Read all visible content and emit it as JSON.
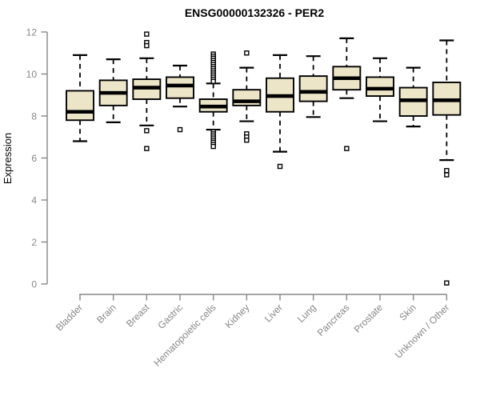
{
  "title": "ENSG00000132326 - PER2",
  "colors": {
    "background": "#ffffff",
    "box_fill": "#ece5c8",
    "box_stroke": "#000000",
    "median": "#000000",
    "whisker": "#000000",
    "outlier_stroke": "#000000",
    "outlier_fill": "#ffffff",
    "axis": "#878787",
    "label_text": "#878787",
    "title_text": "#000000"
  },
  "chart_data": {
    "type": "boxplot",
    "title": "ENSG00000132326 - PER2",
    "xlabel": "",
    "ylabel": "Expression",
    "ylim": [
      0,
      12
    ],
    "yticks": [
      0,
      2,
      4,
      6,
      8,
      10,
      12
    ],
    "grid": false,
    "legend": null,
    "whisker_style": "dashed",
    "outlier_marker": "open-square",
    "categories": [
      "Bladder",
      "Brain",
      "Breast",
      "Gastric",
      "Hematopoietic cells",
      "Kidney",
      "Liver",
      "Lung",
      "Pancreas",
      "Prostate",
      "Skin",
      "Unknown / Other"
    ],
    "series": [
      {
        "category": "Bladder",
        "whisker_low": 6.8,
        "q1": 7.8,
        "median": 8.2,
        "q3": 9.2,
        "whisker_high": 10.9,
        "outliers": []
      },
      {
        "category": "Brain",
        "whisker_low": 7.7,
        "q1": 8.5,
        "median": 9.1,
        "q3": 9.7,
        "whisker_high": 10.7,
        "outliers": []
      },
      {
        "category": "Breast",
        "whisker_low": 7.55,
        "q1": 8.8,
        "median": 9.35,
        "q3": 9.75,
        "whisker_high": 10.75,
        "outliers": [
          11.9,
          11.5,
          11.35,
          7.3,
          6.45
        ]
      },
      {
        "category": "Gastric",
        "whisker_low": 8.45,
        "q1": 8.85,
        "median": 9.45,
        "q3": 9.85,
        "whisker_high": 10.4,
        "outliers": [
          7.35
        ]
      },
      {
        "category": "Hematopoietic cells",
        "whisker_low": 7.35,
        "q1": 8.2,
        "median": 8.45,
        "q3": 8.8,
        "whisker_high": 9.55,
        "outliers": [
          10.95,
          10.85,
          10.75,
          10.65,
          10.55,
          10.45,
          10.35,
          10.25,
          10.15,
          10.05,
          9.95,
          9.85,
          9.75,
          9.65,
          7.25,
          7.15,
          7.05,
          6.95,
          6.85,
          6.75,
          6.65,
          6.55
        ]
      },
      {
        "category": "Kidney",
        "whisker_low": 7.75,
        "q1": 8.5,
        "median": 8.7,
        "q3": 9.25,
        "whisker_high": 10.3,
        "outliers": [
          11.0,
          7.15,
          7.0,
          6.85
        ]
      },
      {
        "category": "Liver",
        "whisker_low": 6.3,
        "q1": 8.2,
        "median": 8.95,
        "q3": 9.8,
        "whisker_high": 10.9,
        "outliers": [
          5.6
        ]
      },
      {
        "category": "Lung",
        "whisker_low": 7.95,
        "q1": 8.7,
        "median": 9.15,
        "q3": 9.9,
        "whisker_high": 10.85,
        "outliers": []
      },
      {
        "category": "Pancreas",
        "whisker_low": 8.85,
        "q1": 9.25,
        "median": 9.8,
        "q3": 10.35,
        "whisker_high": 11.7,
        "outliers": [
          6.45
        ]
      },
      {
        "category": "Prostate",
        "whisker_low": 7.75,
        "q1": 8.95,
        "median": 9.3,
        "q3": 9.85,
        "whisker_high": 10.75,
        "outliers": []
      },
      {
        "category": "Skin",
        "whisker_low": 7.5,
        "q1": 8.0,
        "median": 8.75,
        "q3": 9.35,
        "whisker_high": 10.3,
        "outliers": []
      },
      {
        "category": "Unknown / Other",
        "whisker_low": 5.9,
        "q1": 8.05,
        "median": 8.75,
        "q3": 9.6,
        "whisker_high": 11.6,
        "outliers": [
          5.4,
          5.2,
          0.05
        ]
      }
    ]
  }
}
